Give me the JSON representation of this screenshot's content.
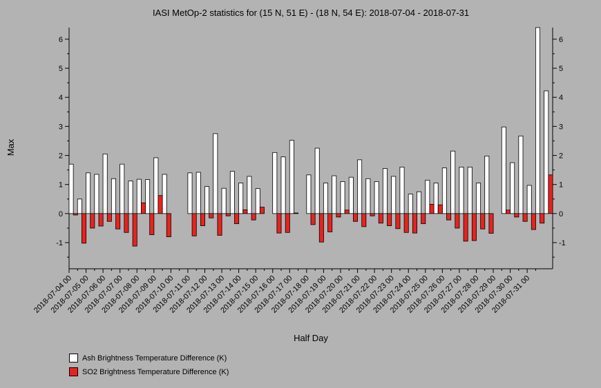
{
  "chart_data": {
    "type": "bar",
    "title": "IASI MetOp-2 statistics for (15 N, 51 E) - (18 N, 54 E): 2018-07-04 - 2018-07-31",
    "xlabel": "Half Day",
    "ylabel": "Max",
    "ylim": [
      -1.9,
      6.4
    ],
    "yticks": [
      -1,
      0,
      1,
      2,
      3,
      4,
      5,
      6
    ],
    "grid": false,
    "legend_position": "bottom-left",
    "x_tick_labels": [
      "2018-07-04 00",
      "2018-07-05 00",
      "2018-07-06 00",
      "2018-07-07 00",
      "2018-07-08 00",
      "2018-07-09 00",
      "2018-07-10 00",
      "2018-07-11 00",
      "2018-07-12 00",
      "2018-07-13 00",
      "2018-07-14 00",
      "2018-07-15 00",
      "2018-07-16 00",
      "2018-07-17 00",
      "2018-07-18 00",
      "2018-07-19 00",
      "2018-07-20 00",
      "2018-07-21 00",
      "2018-07-22 00",
      "2018-07-23 00",
      "2018-07-24 00",
      "2018-07-25 00",
      "2018-07-26 00",
      "2018-07-27 00",
      "2018-07-28 00",
      "2018-07-29 00",
      "2018-07-30 00",
      "2018-07-31 00"
    ],
    "series": [
      {
        "name": "Ash Brightness Temperature Difference (K)",
        "color": "#ffffff",
        "values": [
          1.7,
          0.5,
          1.4,
          1.35,
          2.05,
          1.2,
          1.7,
          1.12,
          1.18,
          1.17,
          1.92,
          1.35,
          null,
          null,
          1.4,
          1.42,
          0.93,
          2.75,
          0.87,
          1.45,
          1.05,
          1.28,
          0.86,
          null,
          2.1,
          1.95,
          2.52,
          null,
          1.33,
          2.25,
          1.05,
          1.3,
          1.1,
          1.25,
          1.85,
          1.2,
          1.1,
          1.55,
          1.28,
          1.6,
          0.67,
          0.75,
          1.15,
          1.05,
          1.57,
          2.15,
          1.6,
          1.6,
          1.05,
          1.98,
          null,
          2.98,
          1.75,
          2.67,
          0.97,
          6.45,
          4.22
        ]
      },
      {
        "name": "SO2 Brightness Temperature Difference (K)",
        "color": "#e8231f",
        "values": [
          -0.05,
          -1.02,
          -0.5,
          -0.43,
          -0.27,
          -0.53,
          -0.65,
          -1.12,
          0.37,
          -0.73,
          0.62,
          -0.8,
          null,
          null,
          -0.77,
          -0.42,
          -0.15,
          -0.75,
          -0.08,
          -0.35,
          0.13,
          -0.22,
          0.22,
          null,
          -0.67,
          -0.65,
          0.02,
          null,
          -0.38,
          -0.98,
          -0.63,
          -0.12,
          0.12,
          -0.27,
          -0.45,
          -0.08,
          -0.33,
          -0.42,
          -0.52,
          -0.65,
          -0.67,
          -0.35,
          0.32,
          0.3,
          -0.22,
          -0.5,
          -0.95,
          -0.93,
          -0.53,
          -0.68,
          null,
          0.12,
          -0.12,
          -0.27,
          -0.55,
          -0.33,
          1.33
        ]
      }
    ]
  }
}
